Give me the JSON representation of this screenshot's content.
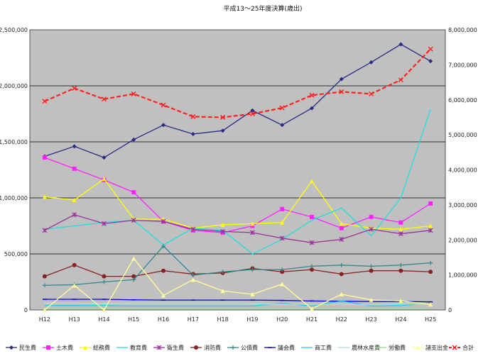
{
  "chart_data": {
    "type": "line",
    "title": "平成13～25年度決算(歳出)",
    "categories": [
      "H12",
      "H13",
      "H14",
      "H15",
      "H16",
      "H17",
      "H18",
      "H19",
      "H20",
      "H21",
      "H22",
      "H23",
      "H24",
      "H25"
    ],
    "ylim": [
      0,
      2500000
    ],
    "y2lim": [
      0,
      8000000
    ],
    "yticks": [
      "0",
      "500,000",
      "1,000,000",
      "1,500,000",
      "2,000,000",
      "2,500,000"
    ],
    "y2ticks": [
      "0",
      "1,000,000",
      "2,000,000",
      "3,000,000",
      "4,000,000",
      "5,000,000",
      "6,000,000",
      "7,000,000",
      "8,000,000"
    ],
    "grid": true,
    "legend_position": "bottom",
    "plot_background": "#c0c0c0",
    "series": [
      {
        "name": "民生費",
        "axis": "left",
        "color": "#2a2a86",
        "marker": "diamond",
        "dashed": false,
        "values": [
          1370000,
          1460000,
          1360000,
          1520000,
          1650000,
          1570000,
          1600000,
          1780000,
          1650000,
          1800000,
          2060000,
          2210000,
          2370000,
          2220000
        ]
      },
      {
        "name": "土木費",
        "axis": "left",
        "color": "#ff22ff",
        "marker": "square",
        "dashed": false,
        "values": [
          1360000,
          1260000,
          1160000,
          1050000,
          790000,
          710000,
          690000,
          750000,
          900000,
          830000,
          730000,
          830000,
          780000,
          950000
        ]
      },
      {
        "name": "総務費",
        "axis": "left",
        "color": "#ffff00",
        "marker": "triangle",
        "dashed": false,
        "values": [
          1010000,
          980000,
          1170000,
          810000,
          810000,
          730000,
          760000,
          770000,
          780000,
          1150000,
          770000,
          730000,
          720000,
          750000
        ]
      },
      {
        "name": "教育費",
        "axis": "left",
        "color": "#22dddd",
        "marker": "none",
        "dashed": false,
        "values": [
          720000,
          750000,
          780000,
          800000,
          580000,
          730000,
          710000,
          500000,
          630000,
          800000,
          910000,
          660000,
          1000000,
          1790000
        ]
      },
      {
        "name": "衛生費",
        "axis": "left",
        "color": "#993399",
        "marker": "star",
        "dashed": false,
        "values": [
          710000,
          850000,
          770000,
          800000,
          790000,
          720000,
          700000,
          690000,
          640000,
          600000,
          630000,
          720000,
          680000,
          710000
        ]
      },
      {
        "name": "消防費",
        "axis": "left",
        "color": "#882222",
        "marker": "circle",
        "dashed": false,
        "values": [
          300000,
          400000,
          300000,
          300000,
          350000,
          320000,
          330000,
          370000,
          340000,
          360000,
          320000,
          350000,
          350000,
          340000
        ]
      },
      {
        "name": "公債費",
        "axis": "left",
        "color": "#338888",
        "marker": "plus",
        "dashed": false,
        "values": [
          220000,
          225000,
          250000,
          270000,
          570000,
          310000,
          340000,
          360000,
          360000,
          390000,
          400000,
          390000,
          400000,
          420000
        ]
      },
      {
        "name": "議会費",
        "axis": "left",
        "color": "#0000dd",
        "marker": "dash",
        "dashed": false,
        "values": [
          95000,
          95000,
          95000,
          90000,
          88000,
          88000,
          88000,
          88000,
          85000,
          80000,
          78000,
          75000,
          75000,
          72000
        ]
      },
      {
        "name": "商工費",
        "axis": "left",
        "color": "#22ccee",
        "marker": "none",
        "dashed": false,
        "values": [
          40000,
          40000,
          40000,
          35000,
          35000,
          35000,
          35000,
          35000,
          60000,
          35000,
          80000,
          35000,
          40000,
          60000
        ]
      },
      {
        "name": "農林水産費",
        "axis": "left",
        "color": "#aadddd",
        "marker": "none",
        "dashed": false,
        "values": [
          60000,
          60000,
          55000,
          60000,
          60000,
          60000,
          60000,
          55000,
          50000,
          50000,
          50000,
          45000,
          55000,
          50000
        ]
      },
      {
        "name": "労働費",
        "axis": "left",
        "color": "#99dd99",
        "marker": "none",
        "dashed": false,
        "values": [
          10000,
          10000,
          10000,
          10000,
          10000,
          10000,
          10000,
          10000,
          10000,
          10000,
          10000,
          10000,
          10000,
          10000
        ]
      },
      {
        "name": "諸支出金",
        "axis": "left",
        "color": "#ffff99",
        "marker": "triangle",
        "dashed": false,
        "values": [
          0,
          220000,
          0,
          460000,
          130000,
          270000,
          170000,
          140000,
          230000,
          10000,
          140000,
          90000,
          80000,
          50000
        ]
      },
      {
        "name": "合計",
        "axis": "right",
        "color": "#ff2222",
        "marker": "x",
        "dashed": true,
        "values": [
          5960000,
          6330000,
          6020000,
          6170000,
          5850000,
          5520000,
          5500000,
          5600000,
          5770000,
          6130000,
          6230000,
          6170000,
          6570000,
          7450000
        ]
      }
    ]
  }
}
